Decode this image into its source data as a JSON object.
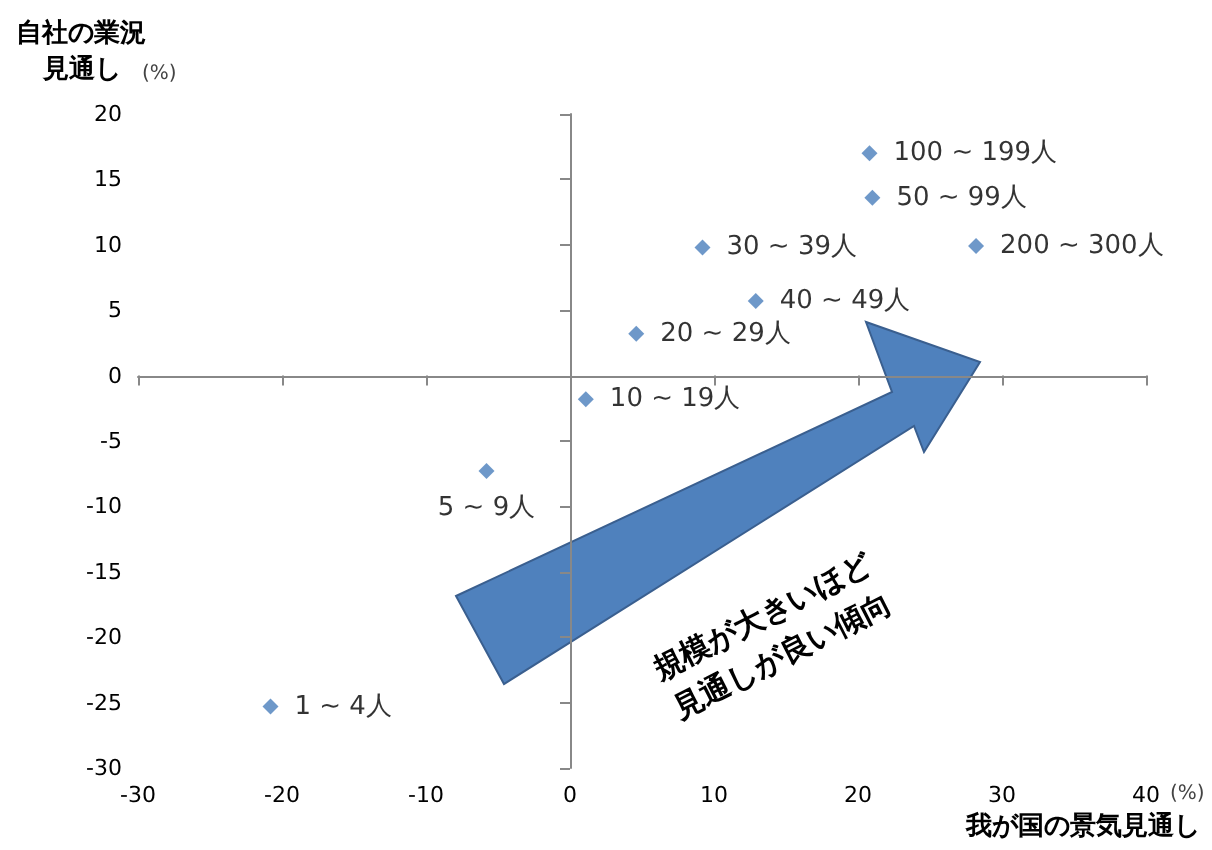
{
  "chart_data": {
    "type": "scatter",
    "xlabel": "我が国の景気見通し",
    "ylabel": "自社の業況見通し",
    "annotations": [
      "(%)",
      "(%)",
      "規模が大きいほど見通しが良い傾向"
    ],
    "xlim": [
      -30,
      40
    ],
    "xticks": [
      -30,
      -20,
      -10,
      0,
      10,
      20,
      30,
      40
    ],
    "ylim": [
      -30,
      20
    ],
    "yticks": [
      -30,
      -25,
      -20,
      -15,
      -10,
      -5,
      0,
      5,
      10,
      15,
      20
    ],
    "legend": false,
    "marker": "diamond",
    "series": [
      {
        "name": "1 ~ 4人",
        "color": "#4a7ebb",
        "x": [
          -20.8
        ],
        "values": [
          -25.3
        ]
      },
      {
        "name": "5 ~ 9人",
        "color": "#4a7ebb",
        "x": [
          -5.8
        ],
        "values": [
          -7.3
        ]
      },
      {
        "name": "10 ~ 19人",
        "color": "#4a7ebb",
        "x": [
          1.1
        ],
        "values": [
          -1.8
        ]
      },
      {
        "name": "20 ~ 29人",
        "color": "#4a7ebb",
        "x": [
          4.6
        ],
        "values": [
          3.2
        ]
      },
      {
        "name": "30 ~ 39人",
        "color": "#4a7ebb",
        "x": [
          9.2
        ],
        "values": [
          9.8
        ]
      },
      {
        "name": "40 ~ 49人",
        "color": "#4a7ebb",
        "x": [
          12.9
        ],
        "values": [
          5.7
        ]
      },
      {
        "name": "50 ~ 99人",
        "color": "#4a7ebb",
        "x": [
          21.0
        ],
        "values": [
          13.6
        ]
      },
      {
        "name": "100 ~ 199人",
        "color": "#4a7ebb",
        "x": [
          20.8
        ],
        "values": [
          17.0
        ]
      },
      {
        "name": "200 ~ 300人",
        "color": "#4a7ebb",
        "x": [
          28.2
        ],
        "values": [
          9.9
        ]
      }
    ]
  }
}
